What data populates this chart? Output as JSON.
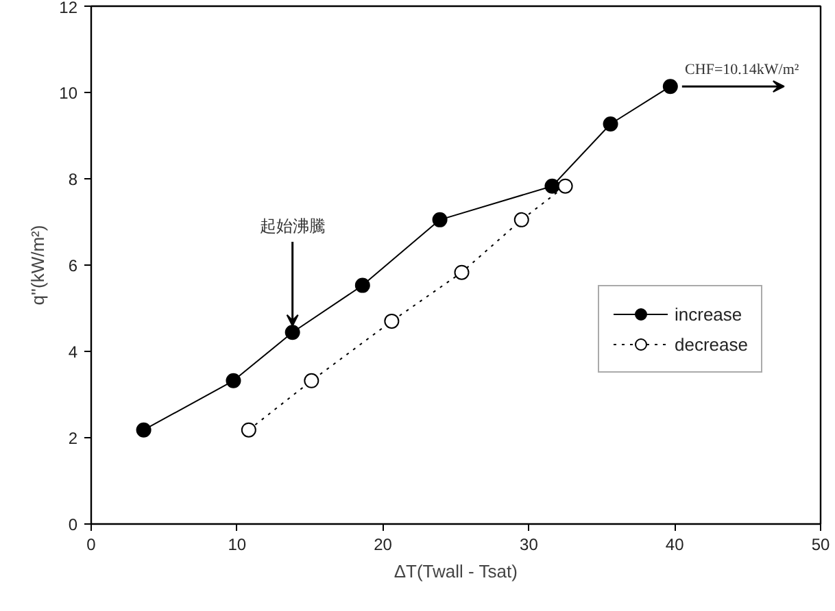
{
  "chart_data": {
    "type": "line",
    "xlabel": "ΔT(Twall - Tsat)",
    "ylabel": "q''(kW/m²)",
    "xlim": [
      0,
      50
    ],
    "xticks": [
      0,
      10,
      20,
      30,
      40,
      50
    ],
    "ylim": [
      0,
      12
    ],
    "yticks": [
      0,
      2,
      4,
      6,
      8,
      10,
      12
    ],
    "grid": false,
    "legend": "right",
    "marker": "circle",
    "series": [
      {
        "name": "increase",
        "color": "#000000",
        "line_style": "solid",
        "x": [
          3.6,
          9.75,
          13.8,
          18.6,
          23.9,
          31.6,
          35.6,
          39.7
        ],
        "values": [
          2.18,
          3.32,
          4.44,
          5.53,
          7.05,
          7.83,
          9.27,
          10.14
        ]
      },
      {
        "name": "decrease",
        "color": "#000000",
        "line_style": "dotted",
        "x": [
          10.8,
          15.1,
          20.6,
          25.4,
          29.5,
          32.5
        ],
        "values": [
          2.18,
          3.32,
          4.7,
          5.83,
          7.05,
          7.83
        ]
      }
    ],
    "annotations": [
      {
        "text": "起始沸騰",
        "x": 13.8,
        "y": 4.44
      },
      {
        "text": "CHF=10.14kW/m²",
        "x": 39.7,
        "y": 10.14
      }
    ]
  }
}
